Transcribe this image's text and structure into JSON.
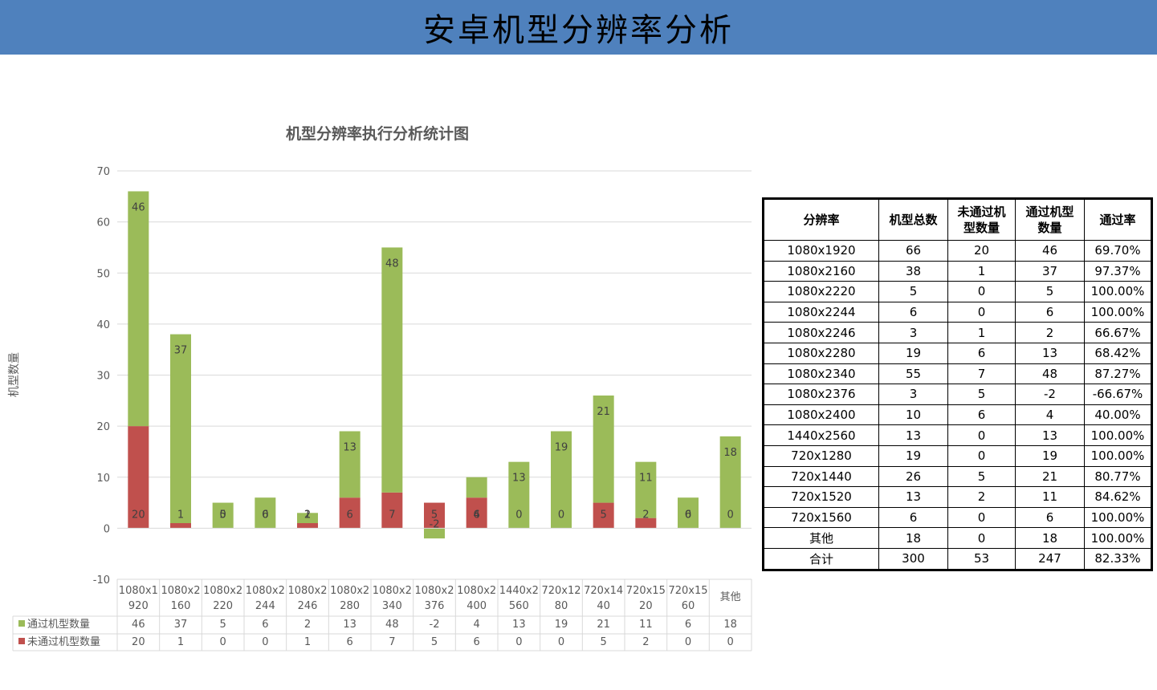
{
  "page": {
    "title": "安卓机型分辨率分析"
  },
  "colors": {
    "banner": "#4f81bd",
    "pass": "#9bbb59",
    "fail": "#c0504d",
    "grid": "#d9d9d9"
  },
  "chart_data": {
    "type": "bar",
    "stacked": true,
    "title": "机型分辨率执行分析统计图",
    "xlabel": "",
    "ylabel": "机型数量",
    "ylim": [
      -10,
      70
    ],
    "yticks": [
      -10,
      0,
      10,
      20,
      30,
      40,
      50,
      60,
      70
    ],
    "grid": true,
    "legend": "data-table-left",
    "categories": [
      "1080x1920",
      "1080x2160",
      "1080x2220",
      "1080x2244",
      "1080x2246",
      "1080x2280",
      "1080x2340",
      "1080x2376",
      "1080x2400",
      "1440x2560",
      "720x1280",
      "720x1440",
      "720x1520",
      "720x1560",
      "其他"
    ],
    "category_labels": [
      [
        "1080x1",
        "920"
      ],
      [
        "1080x2",
        "160"
      ],
      [
        "1080x2",
        "220"
      ],
      [
        "1080x2",
        "244"
      ],
      [
        "1080x2",
        "246"
      ],
      [
        "1080x2",
        "280"
      ],
      [
        "1080x2",
        "340"
      ],
      [
        "1080x2",
        "376"
      ],
      [
        "1080x2",
        "400"
      ],
      [
        "1440x2",
        "560"
      ],
      [
        "720x12",
        "80"
      ],
      [
        "720x14",
        "40"
      ],
      [
        "720x15",
        "20"
      ],
      [
        "720x15",
        "60"
      ],
      [
        "其他",
        ""
      ]
    ],
    "series": [
      {
        "name": "未通过机型数量",
        "color": "#c0504d",
        "values": [
          20,
          1,
          0,
          0,
          1,
          6,
          7,
          5,
          6,
          0,
          0,
          5,
          2,
          0,
          0
        ]
      },
      {
        "name": "通过机型数量",
        "color": "#9bbb59",
        "values": [
          46,
          37,
          5,
          6,
          2,
          13,
          48,
          -2,
          4,
          13,
          19,
          21,
          11,
          6,
          18
        ]
      }
    ]
  },
  "table": {
    "headers": [
      "分辨率",
      "机型总数",
      "未通过机型数量",
      "通过机型数量",
      "通过率"
    ],
    "header_lines": [
      [
        "分辨率"
      ],
      [
        "机型总数"
      ],
      [
        "未通过机",
        "型数量"
      ],
      [
        "通过机型",
        "数量"
      ],
      [
        "通过率"
      ]
    ],
    "rows": [
      [
        "1080x1920",
        "66",
        "20",
        "46",
        "69.70%"
      ],
      [
        "1080x2160",
        "38",
        "1",
        "37",
        "97.37%"
      ],
      [
        "1080x2220",
        "5",
        "0",
        "5",
        "100.00%"
      ],
      [
        "1080x2244",
        "6",
        "0",
        "6",
        "100.00%"
      ],
      [
        "1080x2246",
        "3",
        "1",
        "2",
        "66.67%"
      ],
      [
        "1080x2280",
        "19",
        "6",
        "13",
        "68.42%"
      ],
      [
        "1080x2340",
        "55",
        "7",
        "48",
        "87.27%"
      ],
      [
        "1080x2376",
        "3",
        "5",
        "-2",
        "-66.67%"
      ],
      [
        "1080x2400",
        "10",
        "6",
        "4",
        "40.00%"
      ],
      [
        "1440x2560",
        "13",
        "0",
        "13",
        "100.00%"
      ],
      [
        "720x1280",
        "19",
        "0",
        "19",
        "100.00%"
      ],
      [
        "720x1440",
        "26",
        "5",
        "21",
        "80.77%"
      ],
      [
        "720x1520",
        "13",
        "2",
        "11",
        "84.62%"
      ],
      [
        "720x1560",
        "6",
        "0",
        "6",
        "100.00%"
      ],
      [
        "其他",
        "18",
        "0",
        "18",
        "100.00%"
      ],
      [
        "合计",
        "300",
        "53",
        "247",
        "82.33%"
      ]
    ]
  }
}
